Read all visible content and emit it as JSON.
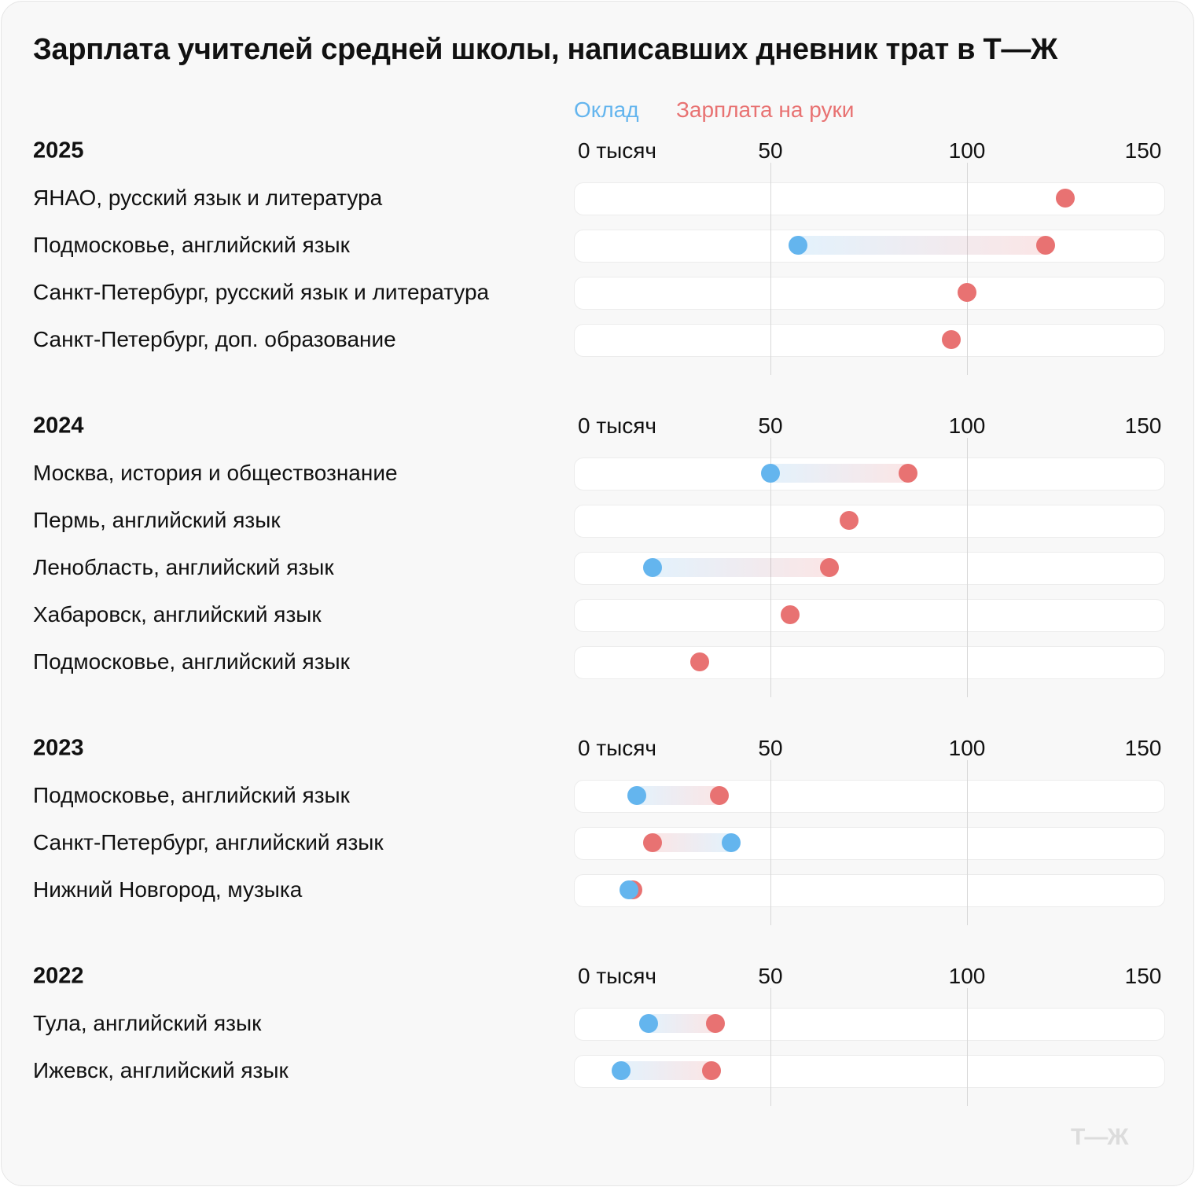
{
  "title": "Зарплата учителей средней школы, написавших дневник трат в Т—Ж",
  "logo": "Т—Ж",
  "colors": {
    "base_salary": "#64b5ee",
    "take_home": "#e87272",
    "background": "#f8f8f8"
  },
  "chart_data": {
    "type": "dumbbell",
    "title": "Зарплата учителей средней школы, написавших дневник трат в Т—Ж",
    "legend": [
      "Оклад",
      "Зарплата на руки"
    ],
    "legend_placement": "top",
    "x_ticks": [
      "0 тысяч",
      "50",
      "100",
      "150"
    ],
    "xlim": [
      0,
      150
    ],
    "grid": true,
    "groups": [
      {
        "year": "2025",
        "rows": [
          {
            "label": "ЯНАО, русский язык и литература",
            "oklad": null,
            "na_ruki": 125
          },
          {
            "label": "Подмосковье, английский язык",
            "oklad": 57,
            "na_ruki": 120
          },
          {
            "label": "Санкт-Петербург, русский язык и литература",
            "oklad": null,
            "na_ruki": 100
          },
          {
            "label": "Санкт-Петербург, доп. образование",
            "oklad": null,
            "na_ruki": 96
          }
        ]
      },
      {
        "year": "2024",
        "rows": [
          {
            "label": "Москва, история и обществознание",
            "oklad": 50,
            "na_ruki": 85
          },
          {
            "label": "Пермь, английский язык",
            "oklad": null,
            "na_ruki": 70
          },
          {
            "label": "Ленобласть, английский язык",
            "oklad": 20,
            "na_ruki": 65
          },
          {
            "label": "Хабаровск, английский язык",
            "oklad": null,
            "na_ruki": 55
          },
          {
            "label": "Подмосковье, английский язык",
            "oklad": null,
            "na_ruki": 32
          }
        ]
      },
      {
        "year": "2023",
        "rows": [
          {
            "label": "Подмосковье, английский язык",
            "oklad": 16,
            "na_ruki": 37
          },
          {
            "label": "Санкт-Петербург, английский язык",
            "oklad": 40,
            "na_ruki": 20
          },
          {
            "label": "Нижний Новгород, музыка",
            "oklad": 14,
            "na_ruki": 15
          }
        ]
      },
      {
        "year": "2022",
        "rows": [
          {
            "label": "Тула, английский язык",
            "oklad": 19,
            "na_ruki": 36
          },
          {
            "label": "Ижевск, английский язык",
            "oklad": 12,
            "na_ruki": 35
          }
        ]
      }
    ]
  }
}
